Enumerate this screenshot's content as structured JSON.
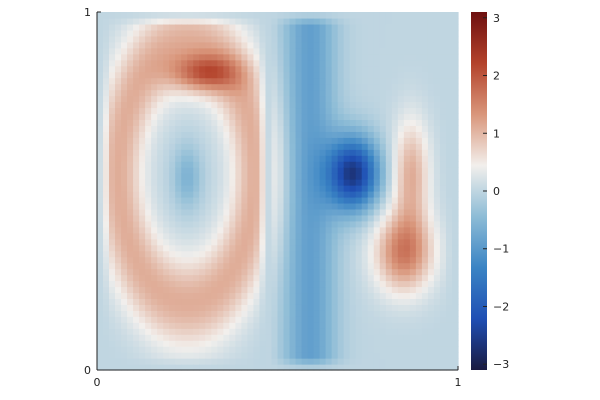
{
  "chart_data": {
    "type": "heatmap",
    "title": "",
    "xlabel": "",
    "ylabel": "",
    "xlim": [
      0,
      1
    ],
    "ylim": [
      0,
      1
    ],
    "x_ticks": [
      "0",
      "1"
    ],
    "y_ticks": [
      "0",
      "1"
    ],
    "grid": false,
    "colorbar": {
      "range": [
        -3.1,
        3.1
      ],
      "ticks": [
        {
          "value": 3,
          "label": "3"
        },
        {
          "value": 2,
          "label": "2"
        },
        {
          "value": 1,
          "label": "1"
        },
        {
          "value": 0,
          "label": "0"
        },
        {
          "value": -1,
          "label": "−1"
        },
        {
          "value": -2,
          "label": "−2"
        },
        {
          "value": -3,
          "label": "−3"
        }
      ],
      "colormap": [
        "#1a1a40",
        "#1f4fb4",
        "#3a84c4",
        "#8dbcd6",
        "#f2efec",
        "#d9967b",
        "#b3422b",
        "#6e1010"
      ]
    },
    "field_features": [
      {
        "kind": "ring",
        "cx": 0.25,
        "cy": 0.55,
        "rx": 0.19,
        "ry": 0.36,
        "width": 0.07,
        "value": 1.1
      },
      {
        "kind": "blob",
        "cx": 0.3,
        "cy": 0.83,
        "rx": 0.09,
        "ry": 0.05,
        "value": 1.3
      },
      {
        "kind": "blob",
        "cx": 0.25,
        "cy": 0.54,
        "rx": 0.04,
        "ry": 0.09,
        "value": -0.6
      },
      {
        "kind": "band",
        "cx": 0.59,
        "cy": 0.5,
        "rx": 0.08,
        "ry": 0.48,
        "value": -0.9
      },
      {
        "kind": "blob",
        "cx": 0.71,
        "cy": 0.55,
        "rx": 0.07,
        "ry": 0.1,
        "value": -2.6
      },
      {
        "kind": "blob",
        "cx": 0.85,
        "cy": 0.33,
        "rx": 0.08,
        "ry": 0.11,
        "value": 1.6
      },
      {
        "kind": "blob",
        "cx": 0.87,
        "cy": 0.55,
        "rx": 0.05,
        "ry": 0.15,
        "value": 1.1
      }
    ]
  }
}
